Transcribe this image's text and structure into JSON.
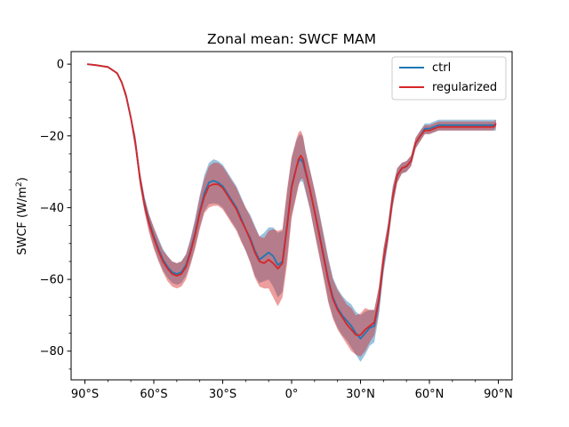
{
  "chart_data": {
    "type": "line",
    "title": "Zonal mean: SWCF MAM",
    "xlabel": "",
    "ylabel": "SWCF (W/m",
    "ylabel_sup": "2",
    "ylabel_close": ")",
    "xlim": [
      -96,
      96
    ],
    "ylim": [
      -88,
      3.5
    ],
    "xticks": [
      -90,
      -60,
      -30,
      0,
      30,
      60,
      90
    ],
    "xtick_labels": [
      "90°S",
      "60°S",
      "30°S",
      "0°",
      "30°N",
      "60°N",
      "90°N"
    ],
    "xminor": [
      -80,
      -70,
      -50,
      -40,
      -20,
      -10,
      10,
      20,
      40,
      50,
      70,
      80
    ],
    "yticks": [
      0,
      -20,
      -40,
      -60,
      -80
    ],
    "ytick_labels": [
      "0",
      "−20",
      "−40",
      "−60",
      "−80"
    ],
    "yminor": [
      -10,
      -30,
      -50,
      -70,
      -85,
      -5,
      -15,
      -25,
      -35,
      -45,
      -55,
      -65,
      -75
    ],
    "legend_position": "upper right",
    "series": [
      {
        "name": "ctrl",
        "color": "#1f77b4",
        "band_color": "#1f77b4",
        "x": [
          -89,
          -85,
          -80,
          -76,
          -74,
          -72,
          -70,
          -68,
          -66,
          -64,
          -62,
          -60,
          -58,
          -56,
          -54,
          -52,
          -50,
          -48,
          -46,
          -44,
          -42,
          -40,
          -38,
          -36,
          -34,
          -32,
          -30,
          -28,
          -26,
          -24,
          -22,
          -20,
          -18,
          -16,
          -14,
          -12,
          -10,
          -8,
          -6,
          -4,
          -2,
          0,
          2,
          3,
          4,
          5,
          6,
          8,
          10,
          12,
          14,
          16,
          18,
          20,
          22,
          24,
          26,
          28,
          30,
          32,
          34,
          36,
          38,
          40,
          42,
          44,
          46,
          48,
          50,
          52,
          54,
          56,
          58,
          60,
          62,
          64,
          66,
          68,
          70,
          72,
          74,
          76,
          78,
          80,
          82,
          84,
          86,
          88,
          89
        ],
        "y": [
          0,
          -0.3,
          -0.8,
          -2.5,
          -5,
          -9,
          -15,
          -22,
          -32,
          -39,
          -44,
          -48,
          -51.5,
          -54.5,
          -56.5,
          -58,
          -58.5,
          -58,
          -56,
          -52,
          -47,
          -41,
          -36,
          -33,
          -32.5,
          -33,
          -34,
          -36,
          -38,
          -40,
          -43,
          -46,
          -48.5,
          -52,
          -54.5,
          -53.5,
          -52.5,
          -53.5,
          -56,
          -55,
          -45,
          -34,
          -29,
          -27,
          -26.5,
          -27.5,
          -30,
          -35,
          -41,
          -47,
          -53.5,
          -60,
          -65,
          -68,
          -70,
          -71.5,
          -73,
          -75,
          -76.5,
          -75,
          -73.5,
          -73,
          -66,
          -55,
          -47,
          -37,
          -31,
          -29,
          -28.5,
          -27,
          -22,
          -20,
          -18,
          -18,
          -17.5,
          -17,
          -17,
          -17,
          -17,
          -17,
          -17,
          -17,
          -17,
          -17,
          -17,
          -17,
          -17,
          -17,
          -17
        ],
        "lower": [
          0,
          -0.3,
          -0.8,
          -2.8,
          -5.5,
          -10,
          -16,
          -24,
          -34,
          -41,
          -46.5,
          -51,
          -54.5,
          -57.5,
          -59.5,
          -61,
          -61.5,
          -61,
          -59,
          -55.5,
          -51,
          -45.5,
          -41,
          -39,
          -38.8,
          -39,
          -40,
          -42,
          -44,
          -46,
          -49,
          -52,
          -55,
          -59,
          -61,
          -60.5,
          -60,
          -62,
          -65,
          -63.5,
          -54,
          -42,
          -36.5,
          -33.5,
          -32.5,
          -33,
          -35.5,
          -40.5,
          -47,
          -53,
          -59.5,
          -66,
          -70.5,
          -73.5,
          -75.5,
          -77,
          -79,
          -81,
          -83,
          -81,
          -78.5,
          -77.5,
          -70,
          -58.5,
          -50,
          -40,
          -33,
          -30.5,
          -30,
          -28.5,
          -23.5,
          -21.5,
          -19.5,
          -19.5,
          -19,
          -18.5,
          -18.5,
          -18.5,
          -18.5,
          -18.5,
          -18.5,
          -18.5,
          -18.5,
          -18.5,
          -18.5,
          -18.5,
          -18.5,
          -18.5,
          -18.5
        ],
        "upper": [
          0,
          -0.3,
          -0.8,
          -2.2,
          -4.5,
          -8,
          -14,
          -20,
          -30,
          -37,
          -42,
          -45.5,
          -48.5,
          -51.5,
          -53.5,
          -55,
          -55.5,
          -55,
          -53,
          -48.5,
          -43,
          -36.5,
          -31,
          -27.5,
          -26.5,
          -27,
          -28,
          -30,
          -32,
          -34,
          -37,
          -40,
          -42,
          -45,
          -48,
          -47,
          -45.5,
          -45.5,
          -47,
          -46.5,
          -36,
          -26,
          -21.5,
          -20,
          -19.5,
          -20.5,
          -24,
          -29.5,
          -35,
          -41,
          -47.5,
          -54,
          -59.5,
          -62.5,
          -64.5,
          -66,
          -67,
          -69,
          -70,
          -69,
          -68.5,
          -68.5,
          -62,
          -51.5,
          -44,
          -34,
          -29,
          -27.5,
          -27,
          -25.5,
          -20.5,
          -18.5,
          -16.5,
          -16.5,
          -16,
          -15.5,
          -15.5,
          -15.5,
          -15.5,
          -15.5,
          -15.5,
          -15.5,
          -15.5,
          -15.5,
          -15.5,
          -15.5,
          -15.5,
          -15.5,
          -15.5
        ]
      },
      {
        "name": "regularized",
        "color": "#d62728",
        "band_color": "#d62728",
        "x": [
          -89,
          -85,
          -80,
          -76,
          -74,
          -72,
          -70,
          -68,
          -66,
          -64,
          -62,
          -60,
          -58,
          -56,
          -54,
          -52,
          -50,
          -48,
          -46,
          -44,
          -42,
          -40,
          -38,
          -36,
          -34,
          -32,
          -30,
          -28,
          -26,
          -24,
          -22,
          -20,
          -18,
          -16,
          -14,
          -12,
          -10,
          -8,
          -6,
          -4,
          -2,
          0,
          2,
          3,
          4,
          5,
          6,
          8,
          10,
          12,
          14,
          16,
          18,
          20,
          22,
          24,
          26,
          28,
          30,
          32,
          34,
          36,
          38,
          40,
          42,
          44,
          46,
          48,
          50,
          52,
          54,
          56,
          58,
          60,
          62,
          64,
          66,
          68,
          70,
          72,
          74,
          76,
          78,
          80,
          82,
          84,
          86,
          88,
          89
        ],
        "y": [
          0,
          -0.3,
          -0.8,
          -2.5,
          -5,
          -9,
          -15,
          -22,
          -32,
          -39.5,
          -44.5,
          -48.5,
          -52,
          -55,
          -57,
          -58.5,
          -59,
          -58.5,
          -56.5,
          -52.5,
          -47.5,
          -41.5,
          -37,
          -34,
          -33.5,
          -33.5,
          -34.5,
          -36.5,
          -38.5,
          -40.5,
          -43.5,
          -46,
          -49,
          -52.5,
          -55,
          -55.5,
          -54.5,
          -55.5,
          -57,
          -55.5,
          -45.5,
          -34.5,
          -29,
          -26.5,
          -25.5,
          -26.5,
          -29.5,
          -35,
          -41,
          -47.5,
          -54,
          -60.5,
          -65.5,
          -68.5,
          -70.5,
          -72.5,
          -74,
          -75.5,
          -75.5,
          -74,
          -73,
          -72,
          -65.5,
          -54.5,
          -47,
          -37,
          -31,
          -29,
          -28.5,
          -27,
          -22,
          -20,
          -18.5,
          -18.5,
          -18,
          -17.5,
          -17.5,
          -17.5,
          -17.5,
          -17.5,
          -17.5,
          -17.5,
          -17.5,
          -17.5,
          -17.5,
          -17.5,
          -17.5,
          -17.5,
          -16.5
        ],
        "lower": [
          0,
          -0.3,
          -0.8,
          -2.8,
          -5.5,
          -10,
          -16,
          -24,
          -34,
          -41.5,
          -47,
          -51.5,
          -55,
          -58,
          -60.5,
          -62,
          -62.5,
          -62,
          -60,
          -56,
          -51.5,
          -46,
          -41.5,
          -40,
          -39.5,
          -39.5,
          -40.5,
          -42.5,
          -44.5,
          -46.5,
          -49.5,
          -52,
          -55.5,
          -59.5,
          -62,
          -62.5,
          -62.5,
          -65,
          -67.5,
          -65,
          -56,
          -43,
          -37,
          -34,
          -32,
          -32,
          -35,
          -40.5,
          -47,
          -53.5,
          -60,
          -66.5,
          -71,
          -74,
          -76,
          -78,
          -80,
          -81,
          -81.5,
          -80,
          -77.5,
          -75.5,
          -69,
          -57.5,
          -49.5,
          -39.5,
          -33,
          -30.5,
          -30,
          -28.5,
          -23.5,
          -21.5,
          -19.5,
          -19.5,
          -19,
          -18.5,
          -18.5,
          -18.5,
          -18.5,
          -18.5,
          -18.5,
          -18.5,
          -18.5,
          -18.5,
          -18.5,
          -18.5,
          -18.5,
          -18.5,
          -17.5
        ],
        "upper": [
          0,
          -0.3,
          -0.8,
          -2.2,
          -4.5,
          -8,
          -14,
          -20,
          -30,
          -37.5,
          -42,
          -45.5,
          -49,
          -52,
          -53.5,
          -55,
          -55.5,
          -55,
          -53,
          -49,
          -43.5,
          -37,
          -32,
          -28.5,
          -27.5,
          -27.5,
          -28.5,
          -30.5,
          -32.5,
          -34.5,
          -37.5,
          -40,
          -42.5,
          -45.5,
          -48,
          -48.5,
          -46.5,
          -46,
          -46.5,
          -46,
          -35,
          -26,
          -21,
          -19,
          -18.5,
          -20,
          -24,
          -29.5,
          -35,
          -41.5,
          -48,
          -54.5,
          -60,
          -63,
          -65,
          -67,
          -68,
          -70,
          -69.5,
          -68,
          -68.5,
          -68.5,
          -62,
          -51.5,
          -44.5,
          -34.5,
          -29,
          -27.5,
          -27,
          -25.5,
          -20.5,
          -18.5,
          -17,
          -17,
          -16.5,
          -16,
          -16,
          -16,
          -16,
          -16,
          -16,
          -16,
          -16,
          -16,
          -16,
          -16,
          -16,
          -16,
          -15.5
        ]
      }
    ]
  }
}
